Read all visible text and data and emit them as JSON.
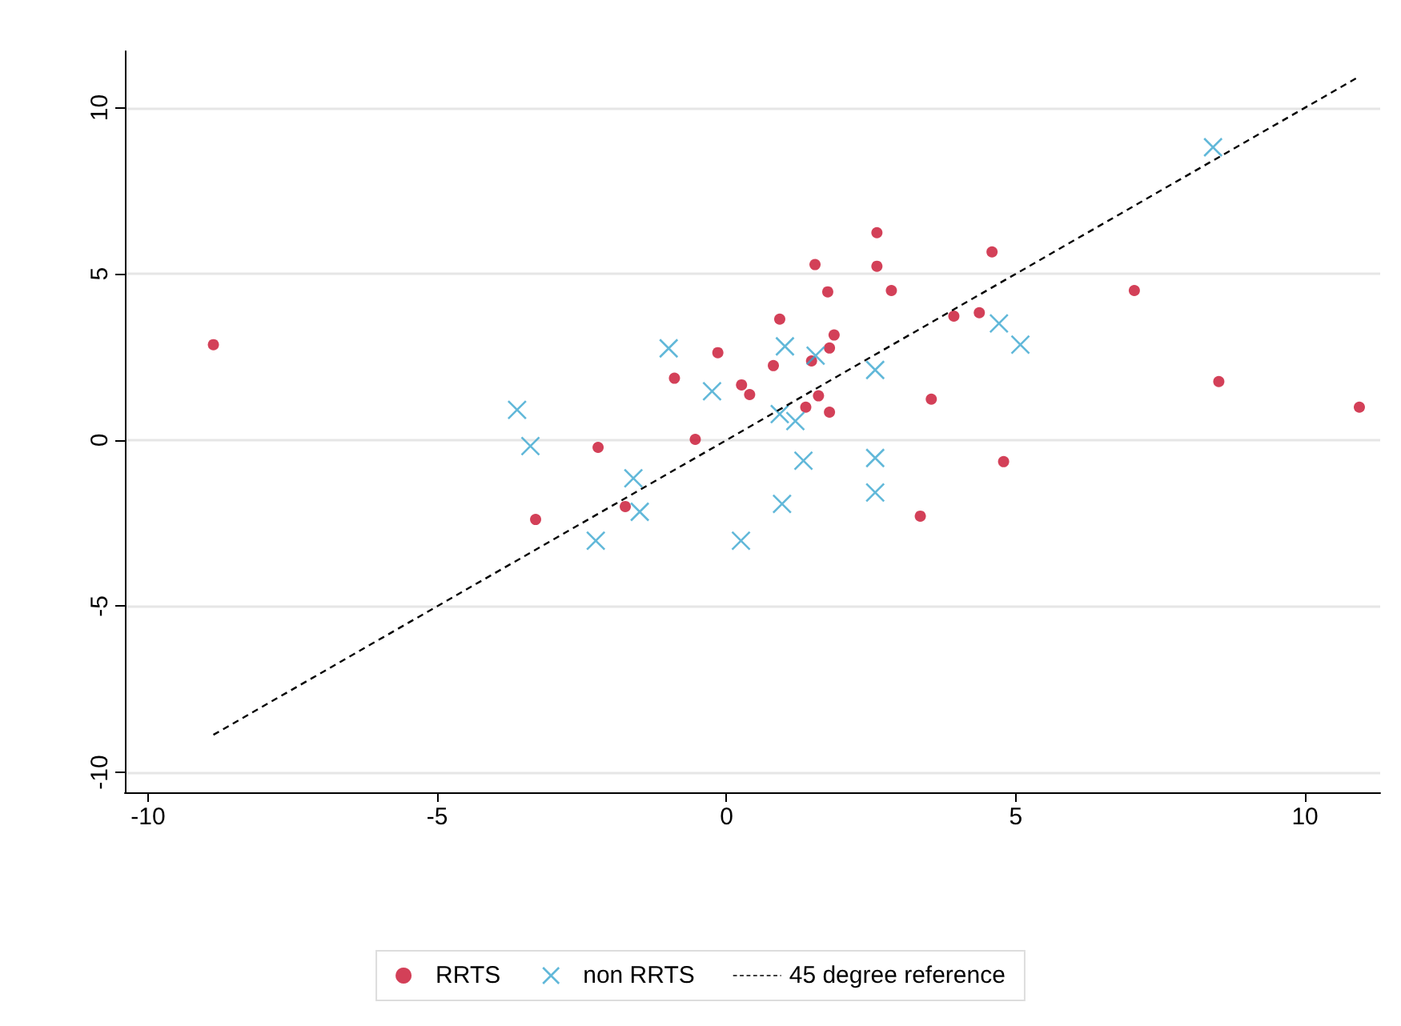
{
  "chart_data": {
    "type": "scatter",
    "xlim": [
      -10.4,
      11.3
    ],
    "xticks": [
      -10,
      -5,
      0,
      5,
      10
    ],
    "ylim": [
      -10.6,
      11.7
    ],
    "yticks": [
      -10,
      -5,
      0,
      5,
      10
    ],
    "grid": "y",
    "legend": "bottom",
    "series": [
      {
        "name": "RRTS",
        "color": "#c8102e",
        "marker": "circle",
        "x": [
          -8.87,
          -3.3,
          -2.22,
          -1.75,
          -0.9,
          -0.54,
          -0.15,
          0.26,
          0.4,
          0.81,
          0.92,
          1.37,
          1.59,
          1.47,
          1.53,
          1.75,
          1.78,
          1.86,
          1.78,
          2.6,
          2.6,
          2.85,
          3.93,
          4.37,
          4.59,
          3.54,
          4.79,
          3.35,
          7.05,
          8.51,
          10.94
        ],
        "values": [
          2.87,
          -2.39,
          -0.22,
          -2.0,
          1.86,
          0.02,
          2.63,
          1.66,
          1.37,
          2.24,
          3.64,
          0.99,
          1.33,
          2.38,
          5.28,
          4.46,
          2.77,
          3.16,
          0.84,
          6.24,
          5.23,
          4.5,
          3.73,
          3.83,
          5.66,
          1.23,
          -0.65,
          -2.29,
          4.5,
          1.76,
          0.99
        ]
      },
      {
        "name": "non RRTS",
        "color": "#3aa6d0",
        "marker": "cross",
        "x": [
          -3.62,
          -3.39,
          -1.0,
          -0.25,
          -1.61,
          -1.5,
          -2.26,
          0.25,
          1.01,
          1.54,
          0.92,
          1.19,
          1.33,
          0.96,
          2.57,
          2.57,
          2.57,
          4.71,
          5.08,
          8.41
        ],
        "values": [
          0.91,
          -0.18,
          2.76,
          1.47,
          -1.15,
          -2.16,
          -3.03,
          -3.03,
          2.82,
          2.54,
          0.78,
          0.57,
          -0.62,
          -1.92,
          2.11,
          -0.54,
          -1.58,
          3.51,
          2.87,
          8.81
        ]
      },
      {
        "name": "45 degree reference",
        "type": "line",
        "color": "#000000",
        "marker": "none",
        "line_style": "dashed",
        "x": [
          -8.87,
          10.94
        ],
        "values": [
          -8.87,
          10.94
        ]
      }
    ]
  }
}
